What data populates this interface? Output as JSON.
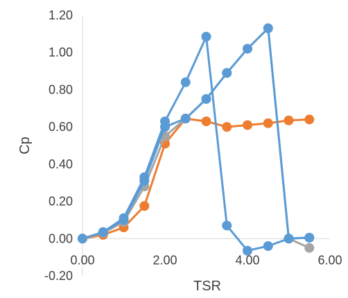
{
  "chart_data": {
    "type": "line",
    "title": "",
    "xlabel": "TSR",
    "ylabel": "Cp",
    "xlim": [
      0,
      6
    ],
    "ylim": [
      -0.2,
      1.2
    ],
    "xticks": [
      "0.00",
      "2.00",
      "4.00",
      "6.00"
    ],
    "xtick_values": [
      0,
      2,
      4,
      6
    ],
    "yticks": [
      "-0.20",
      "0.00",
      "0.20",
      "0.40",
      "0.60",
      "0.80",
      "1.00",
      "1.20"
    ],
    "ytick_values": [
      -0.2,
      0,
      0.2,
      0.4,
      0.6,
      0.8,
      1.0,
      1.2
    ],
    "grid": false,
    "legend": "none",
    "series": [
      {
        "color": "#ED7D31",
        "x": [
          0,
          0.5,
          1.0,
          1.5,
          2.0,
          2.5,
          3.0,
          3.5,
          4.0,
          4.5,
          5.0,
          5.5
        ],
        "y": [
          0.0,
          0.02,
          0.06,
          0.175,
          0.51,
          0.645,
          0.63,
          0.6,
          0.61,
          0.62,
          0.635,
          0.64
        ]
      },
      {
        "color": "#A5A5A5",
        "x": [
          0,
          0.5,
          1.0,
          1.5,
          2.0,
          2.5,
          3.0,
          3.5,
          4.0,
          4.5,
          5.0,
          5.5
        ],
        "y": [
          0.0,
          0.03,
          0.09,
          0.28,
          0.55,
          0.645,
          0.75,
          0.89,
          1.02,
          1.13,
          0.0,
          -0.05
        ]
      },
      {
        "color": "#5B9BD5",
        "x": [
          0,
          0.5,
          1.0,
          1.5,
          2.0,
          2.5,
          3.0,
          3.5,
          4.0,
          4.5,
          5.0,
          5.5
        ],
        "y": [
          0.0,
          0.035,
          0.11,
          0.33,
          0.63,
          0.84,
          1.085,
          0.07,
          -0.065,
          -0.04,
          0.0,
          0.005
        ]
      },
      {
        "color": "#5B9BD5",
        "x": [
          0,
          0.5,
          1.0,
          1.5,
          2.0,
          2.5,
          3.0,
          3.5,
          4.0,
          4.5,
          5.0,
          5.5
        ],
        "y": [
          0.0,
          0.035,
          0.1,
          0.31,
          0.6,
          0.645,
          0.75,
          0.89,
          1.02,
          1.13,
          0.0,
          0.005
        ]
      }
    ]
  }
}
